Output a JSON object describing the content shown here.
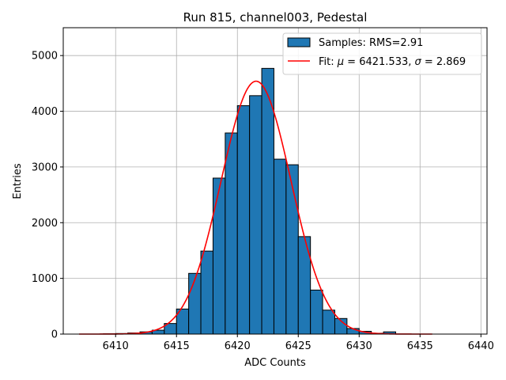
{
  "chart_data": {
    "type": "bar",
    "title": "Run 815, channel003, Pedestal",
    "xlabel": "ADC Counts",
    "ylabel": "Entries",
    "xlim": [
      6405.7,
      6440.5
    ],
    "ylim": [
      0,
      5500
    ],
    "xticks": [
      6410,
      6415,
      6420,
      6425,
      6430,
      6435,
      6440
    ],
    "yticks": [
      0,
      1000,
      2000,
      3000,
      4000,
      5000
    ],
    "grid": true,
    "legend_position": "top-right",
    "histogram": {
      "name": "Samples: RMS=2.91",
      "color": "#1f77b4",
      "bin_width": 1,
      "bin_starts": [
        6409,
        6410,
        6411,
        6412,
        6413,
        6414,
        6415,
        6416,
        6417,
        6418,
        6419,
        6420,
        6421,
        6422,
        6423,
        6424,
        6425,
        6426,
        6427,
        6428,
        6429,
        6430,
        6431,
        6432
      ],
      "values": [
        5,
        10,
        20,
        40,
        70,
        190,
        450,
        1090,
        1490,
        2800,
        3610,
        4100,
        4280,
        4770,
        3140,
        3040,
        1750,
        790,
        430,
        280,
        100,
        50,
        15,
        40
      ]
    },
    "fit": {
      "name": "Fit: μ = 6421.533, σ = 2.869",
      "label_prefix": "Fit: ",
      "label_mu_symbol": "μ",
      "label_mu_value": " = 6421.533, ",
      "label_sigma_symbol": "σ",
      "label_sigma_value": " = 2.869",
      "color": "#ff0000",
      "mu": 6421.533,
      "sigma": 2.869,
      "amplitude": 4540,
      "x_range": [
        6407,
        6436
      ]
    },
    "legend": {
      "samples_label": "Samples: RMS=2.91"
    }
  }
}
